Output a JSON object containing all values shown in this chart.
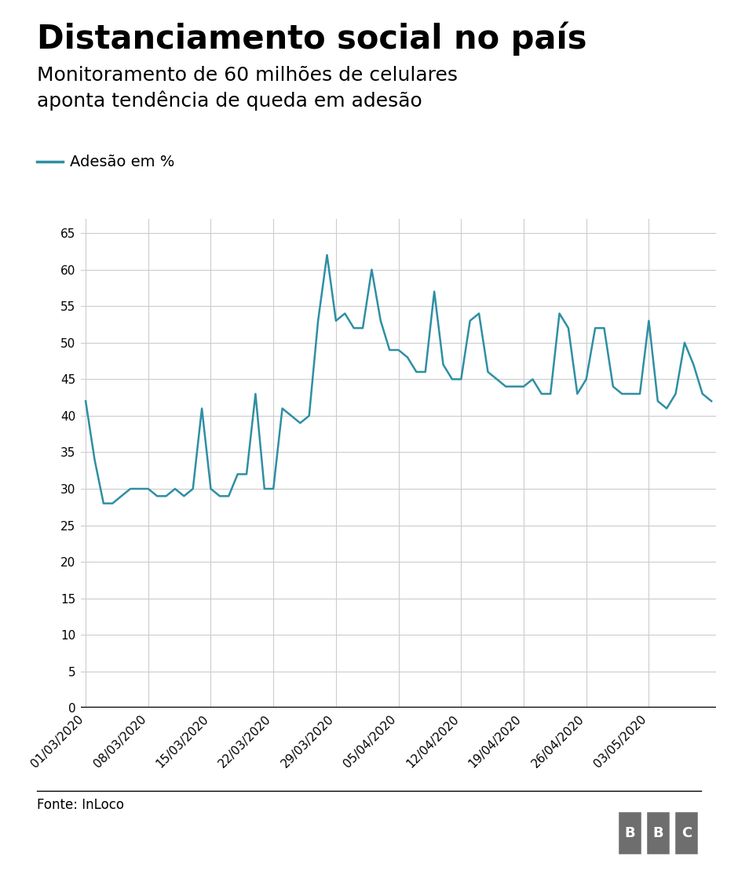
{
  "title": "Distanciamento social no país",
  "subtitle": "Monitoramento de 60 milhões de celulares\naponta tendência de queda em adesão",
  "legend_label": "Adesão em %",
  "line_color": "#2e8fa3",
  "background_color": "#ffffff",
  "fonte": "Fonte: InLoco",
  "ylim": [
    0,
    67
  ],
  "yticks": [
    0,
    5,
    10,
    15,
    20,
    25,
    30,
    35,
    40,
    45,
    50,
    55,
    60,
    65
  ],
  "xtick_labels": [
    "01/03/2020",
    "08/03/2020",
    "15/03/2020",
    "22/03/2020",
    "29/03/2020",
    "05/04/2020",
    "12/04/2020",
    "19/04/2020",
    "26/04/2020",
    "03/05/2020"
  ],
  "xtick_positions": [
    0,
    7,
    14,
    21,
    28,
    35,
    42,
    49,
    56,
    63
  ],
  "values": [
    42,
    34,
    28,
    28,
    29,
    30,
    30,
    30,
    29,
    29,
    30,
    29,
    30,
    41,
    30,
    29,
    29,
    32,
    32,
    43,
    30,
    30,
    41,
    40,
    39,
    40,
    53,
    62,
    53,
    54,
    52,
    52,
    60,
    53,
    49,
    49,
    48,
    46,
    46,
    57,
    47,
    45,
    45,
    53,
    54,
    46,
    45,
    44,
    44,
    44,
    45,
    43,
    43,
    54,
    52,
    43,
    45,
    52,
    52,
    44,
    43,
    43,
    43,
    53,
    42,
    41,
    43,
    50,
    47,
    43,
    42
  ],
  "title_fontsize": 30,
  "subtitle_fontsize": 18,
  "legend_fontsize": 14,
  "tick_fontsize": 11,
  "fonte_fontsize": 12,
  "grid_color": "#cccccc",
  "spine_color": "#000000",
  "separator_color": "#000000"
}
